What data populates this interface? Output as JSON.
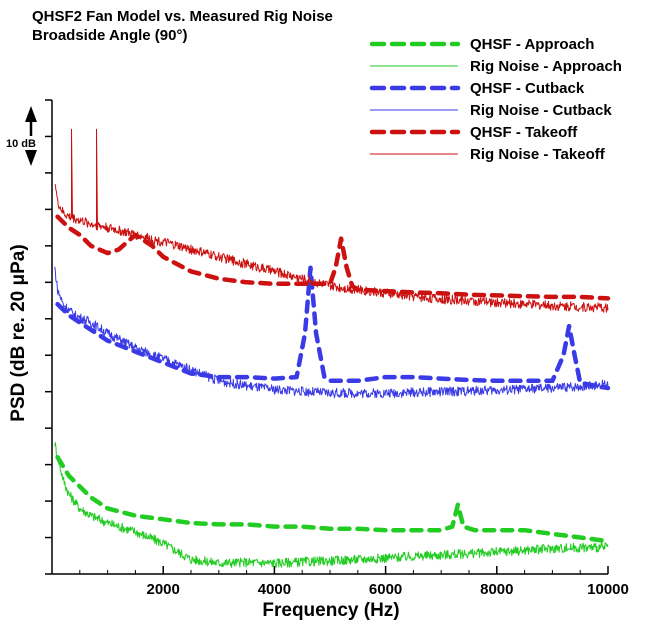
{
  "chart_data": {
    "type": "line",
    "title": "QHSF2 Fan Model vs. Measured Rig Noise",
    "subtitle": "Broadside Angle (90°)",
    "xlabel": "Frequency (Hz)",
    "ylabel": "PSD (dB re. 20 μPa)",
    "xlim": [
      0,
      10000
    ],
    "ylim": [
      0,
      65
    ],
    "x_ticks": [
      2000,
      4000,
      6000,
      8000,
      10000
    ],
    "x_tick_labels": [
      "2000",
      "4000",
      "6000",
      "8000",
      "10000"
    ],
    "y_ticks": [
      0,
      5,
      10,
      15,
      20,
      25,
      30,
      35,
      40,
      45,
      50,
      55,
      60,
      65
    ],
    "y_scale_annotation": "10 dB",
    "grid": false,
    "legend_position": "top-right",
    "series": [
      {
        "name": "QHSF - Approach",
        "color": "#22cc22",
        "dash": "dashed",
        "x": [
          100,
          300,
          500,
          700,
          1000,
          1500,
          2000,
          2500,
          3000,
          3500,
          4000,
          4500,
          5000,
          5500,
          6000,
          6500,
          7000,
          7200,
          7300,
          7400,
          7600,
          8000,
          8500,
          9000,
          9500,
          10000
        ],
        "y": [
          16,
          13.5,
          12,
          10.5,
          9,
          8,
          7.5,
          7,
          6.8,
          6.8,
          6.5,
          6.5,
          6.2,
          6.2,
          6,
          6,
          6,
          6.5,
          9.5,
          6.5,
          6,
          6,
          6,
          5.5,
          5,
          4.5
        ]
      },
      {
        "name": "Rig Noise - Approach",
        "color": "#22cc22",
        "dash": "solid",
        "x": [
          50,
          100,
          200,
          300,
          500,
          700,
          1000,
          1500,
          2000,
          2500,
          3000,
          3500,
          4000,
          5000,
          6000,
          7000,
          8000,
          9000,
          10000
        ],
        "y": [
          18,
          16,
          13,
          11,
          9,
          8,
          7,
          5.8,
          4.2,
          2,
          1.5,
          1.6,
          1.5,
          1.8,
          2.2,
          2.6,
          3,
          3.5,
          3.7
        ]
      },
      {
        "name": "QHSF - Cutback",
        "color": "#3a3ae6",
        "dash": "dashed",
        "x": [
          100,
          300,
          500,
          700,
          1000,
          1500,
          2000,
          2500,
          3000,
          3500,
          4000,
          4400,
          4550,
          4650,
          4750,
          4900,
          5000,
          5500,
          6000,
          6500,
          7000,
          7500,
          8000,
          8500,
          9000,
          9200,
          9300,
          9400,
          9500,
          10000
        ],
        "y": [
          37,
          35.5,
          34.5,
          33.5,
          32,
          30.5,
          29,
          27.5,
          27,
          27,
          26.8,
          27,
          33,
          42,
          33,
          27,
          26.5,
          26.5,
          27,
          27,
          26.8,
          26.6,
          26.5,
          26.5,
          26.5,
          30,
          34,
          30,
          26.2,
          25.5
        ]
      },
      {
        "name": "Rig Noise - Cutback",
        "color": "#3a3ae6",
        "dash": "solid",
        "x": [
          50,
          100,
          200,
          400,
          700,
          1000,
          1500,
          2000,
          2500,
          3000,
          3500,
          4000,
          5000,
          6000,
          7000,
          8000,
          9000,
          10000
        ],
        "y": [
          42,
          39,
          37,
          35.5,
          34.5,
          33,
          31,
          29.5,
          28,
          26.5,
          25.8,
          25.3,
          24.8,
          24.8,
          25,
          25.2,
          25.5,
          26
        ]
      },
      {
        "name": "QHSF - Takeoff",
        "color": "#cc1111",
        "dash": "dashed",
        "x": [
          100,
          300,
          500,
          700,
          1000,
          1200,
          1500,
          1800,
          2000,
          2500,
          3000,
          3500,
          4000,
          4500,
          5000,
          5100,
          5200,
          5300,
          5400,
          5500,
          6000,
          6500,
          7000,
          7500,
          8000,
          8500,
          9000,
          9500,
          10000
        ],
        "y": [
          49,
          47.5,
          46.5,
          45,
          44,
          44.5,
          46.5,
          45,
          43.5,
          41.5,
          40.5,
          40,
          39.8,
          39.8,
          39.8,
          42,
          46,
          42,
          39.5,
          39,
          38.8,
          38.6,
          38.5,
          38.3,
          38.2,
          38.1,
          38,
          38,
          37.8
        ]
      },
      {
        "name": "Rig Noise - Takeoff",
        "color": "#cc1111",
        "dash": "solid",
        "x": [
          50,
          100,
          200,
          300,
          500,
          700,
          1000,
          1500,
          2000,
          2500,
          3000,
          3500,
          4000,
          4500,
          5000,
          6000,
          7000,
          8000,
          9000,
          10000
        ],
        "y": [
          54,
          51,
          49.5,
          49,
          48.5,
          48,
          47.5,
          46.5,
          45.5,
          44.5,
          43.5,
          42.5,
          41.5,
          40.5,
          39.5,
          38.5,
          37.7,
          37.2,
          36.8,
          36.5
        ],
        "spikes": [
          {
            "x": 350,
            "y": 61
          },
          {
            "x": 800,
            "y": 61
          }
        ]
      }
    ]
  }
}
